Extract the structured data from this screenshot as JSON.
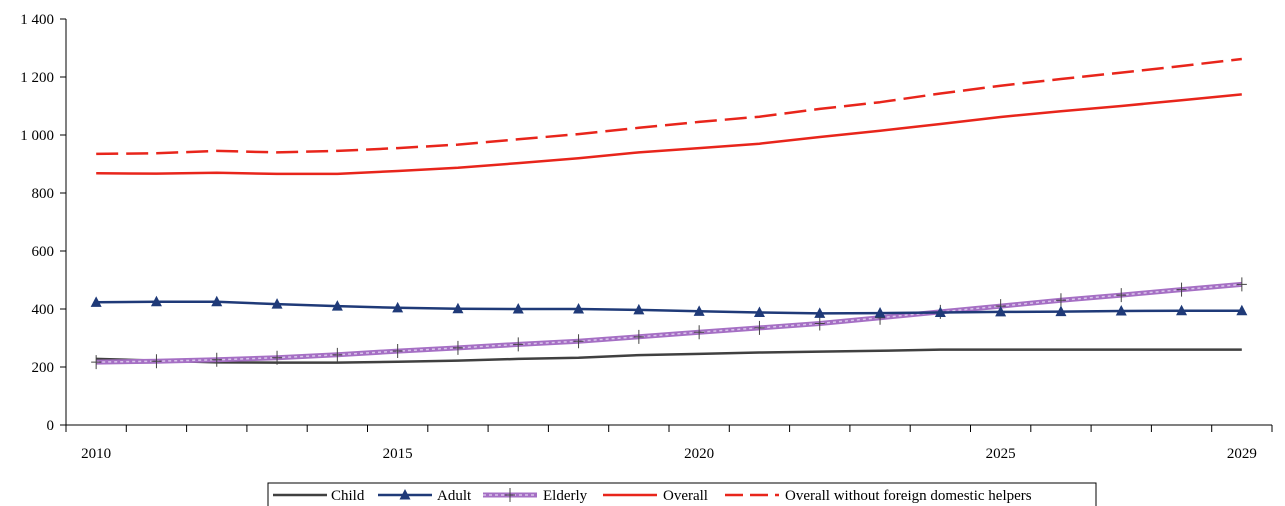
{
  "chart_data": {
    "type": "line",
    "title": "",
    "xlabel": "",
    "ylabel": "",
    "x": [
      2010,
      2011,
      2012,
      2013,
      2014,
      2015,
      2016,
      2017,
      2018,
      2019,
      2020,
      2021,
      2022,
      2023,
      2024,
      2025,
      2026,
      2027,
      2028,
      2029
    ],
    "x_tick_labels": [
      {
        "value": 2010,
        "label": "2010"
      },
      {
        "value": 2015,
        "label": "2015"
      },
      {
        "value": 2020,
        "label": "2020"
      },
      {
        "value": 2025,
        "label": "2025"
      },
      {
        "value": 2029,
        "label": "2029"
      }
    ],
    "y_ticks": [
      {
        "value": 0,
        "label": "0"
      },
      {
        "value": 200,
        "label": "200"
      },
      {
        "value": 400,
        "label": "400"
      },
      {
        "value": 600,
        "label": "600"
      },
      {
        "value": 800,
        "label": "800"
      },
      {
        "value": 1000,
        "label": "1 000"
      },
      {
        "value": 1200,
        "label": "1 200"
      },
      {
        "value": 1400,
        "label": "1 400"
      }
    ],
    "ylim": [
      0,
      1400
    ],
    "grid": false,
    "legend_position": "bottom",
    "series": [
      {
        "name": "Child",
        "color": "#404040",
        "style": "solid",
        "marker": "none",
        "values": [
          228,
          222,
          216,
          215,
          215,
          218,
          222,
          228,
          232,
          241,
          245,
          250,
          253,
          256,
          260,
          260,
          260,
          260,
          260,
          260
        ]
      },
      {
        "name": "Adult",
        "color": "#1f3a78",
        "style": "solid",
        "marker": "triangle",
        "values": [
          423,
          425,
          425,
          417,
          410,
          404,
          401,
          400,
          400,
          397,
          392,
          388,
          385,
          386,
          388,
          390,
          391,
          393,
          394,
          394
        ]
      },
      {
        "name": "Elderly",
        "color": "#a56fc4",
        "style": "band",
        "marker": "plus",
        "values": [
          217,
          220,
          225,
          232,
          242,
          255,
          266,
          278,
          289,
          304,
          320,
          335,
          350,
          370,
          390,
          410,
          430,
          448,
          467,
          485
        ]
      },
      {
        "name": "Overall",
        "color": "#e8251b",
        "style": "solid",
        "marker": "none",
        "values": [
          868,
          867,
          870,
          866,
          866,
          876,
          887,
          903,
          920,
          940,
          955,
          970,
          993,
          1015,
          1038,
          1062,
          1082,
          1100,
          1120,
          1140
        ]
      },
      {
        "name": "Overall without foreign domestic helpers",
        "color": "#e8251b",
        "style": "dashed",
        "marker": "none",
        "values": [
          935,
          937,
          945,
          940,
          945,
          955,
          967,
          985,
          1003,
          1025,
          1045,
          1063,
          1090,
          1113,
          1143,
          1170,
          1193,
          1215,
          1238,
          1262
        ]
      }
    ]
  }
}
